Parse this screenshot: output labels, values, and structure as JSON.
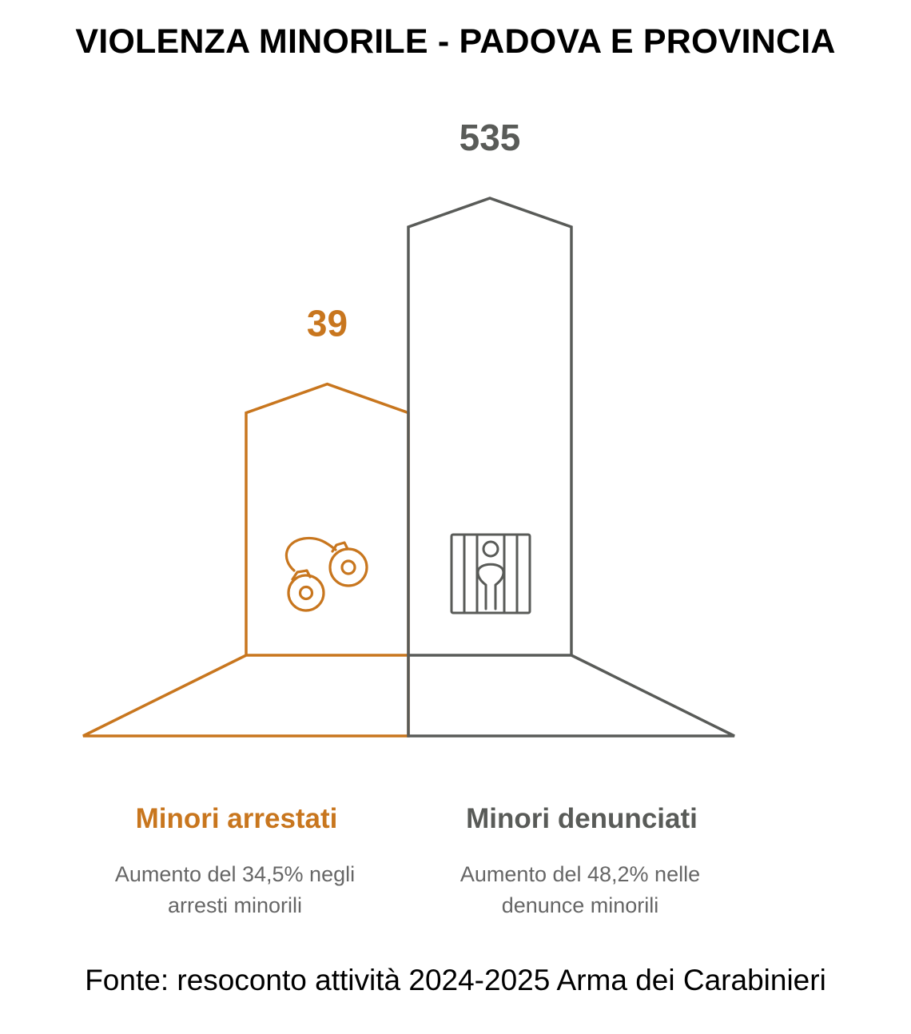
{
  "title": "VIOLENZA MINORILE - PADOVA E PROVINCIA",
  "source": "Fonte: resoconto attività 2024-2025 Arma dei Carabinieri",
  "colors": {
    "arrestati": "#c8761e",
    "denunciati": "#595b58"
  },
  "chart_data": {
    "type": "bar",
    "categories": [
      "Minori arrestati",
      "Minori denunciati"
    ],
    "values": [
      39,
      535
    ],
    "value_labels": [
      "39",
      "535"
    ],
    "descriptions": [
      [
        "Aumento del 34,5% negli",
        "arresti minorili"
      ],
      [
        "Aumento del 48,2% nelle",
        "denunce minorili"
      ]
    ],
    "icons": [
      "handcuffs-icon",
      "prisoner-behind-bars-icon"
    ],
    "xlabel": "",
    "ylabel": "",
    "grid": false
  }
}
